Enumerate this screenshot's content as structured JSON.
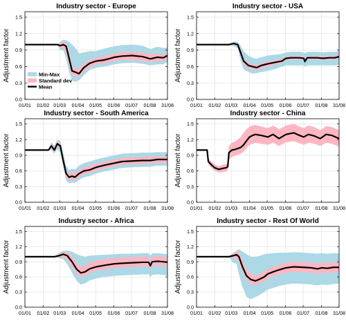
{
  "legend": {
    "items": [
      {
        "label": "Min-Max",
        "color": "#add8e6"
      },
      {
        "label": "Standard dev",
        "color": "#ffb6c1"
      },
      {
        "label": "Mean",
        "color": "#000000"
      }
    ]
  },
  "chart_data": [
    {
      "type": "area",
      "title": "Industry sector - Europe",
      "ylabel": "Adjustment factor",
      "xlabel": "",
      "x_ticks": [
        "01/01",
        "01/02",
        "01/03",
        "01/04",
        "01/05",
        "01/06",
        "01/07",
        "01/08",
        "31/08"
      ],
      "y_ticks": [
        0.0,
        0.3,
        0.6,
        0.9,
        1.2,
        1.5
      ],
      "ylim": [
        0,
        1.6
      ],
      "xlim_days": [
        0,
        242
      ],
      "legend_position": "lower-left",
      "grid": true,
      "x": [
        0,
        55,
        60,
        65,
        70,
        75,
        80,
        85,
        92,
        100,
        110,
        121,
        135,
        152,
        165,
        182,
        200,
        213,
        225,
        235,
        242
      ],
      "mean": [
        1.0,
        1.0,
        0.98,
        1.0,
        0.97,
        0.75,
        0.52,
        0.5,
        0.47,
        0.58,
        0.66,
        0.7,
        0.72,
        0.77,
        0.79,
        0.8,
        0.78,
        0.74,
        0.77,
        0.76,
        0.8
      ],
      "std_low": [
        1.0,
        1.0,
        0.94,
        0.95,
        0.85,
        0.64,
        0.45,
        0.42,
        0.42,
        0.52,
        0.6,
        0.64,
        0.66,
        0.7,
        0.72,
        0.72,
        0.7,
        0.68,
        0.7,
        0.7,
        0.73
      ],
      "std_high": [
        1.0,
        1.0,
        1.02,
        1.05,
        1.03,
        0.86,
        0.6,
        0.58,
        0.56,
        0.65,
        0.72,
        0.76,
        0.79,
        0.84,
        0.86,
        0.87,
        0.85,
        0.82,
        0.84,
        0.82,
        0.86
      ],
      "min": [
        1.0,
        1.0,
        0.9,
        0.9,
        0.75,
        0.5,
        0.35,
        0.32,
        0.35,
        0.44,
        0.54,
        0.58,
        0.6,
        0.64,
        0.66,
        0.67,
        0.65,
        0.62,
        0.64,
        0.64,
        0.68
      ],
      "max": [
        1.0,
        1.0,
        1.05,
        1.09,
        1.08,
        1.05,
        1.0,
        0.95,
        0.84,
        0.86,
        0.88,
        0.88,
        0.93,
        0.97,
        0.99,
        1.0,
        0.98,
        0.92,
        0.96,
        0.94,
        0.95
      ]
    },
    {
      "type": "area",
      "title": "Industry sector - USA",
      "ylabel": "Adjustment factor",
      "xlabel": "",
      "x_ticks": [
        "01/01",
        "01/02",
        "01/03",
        "01/04",
        "01/05",
        "01/06",
        "01/07",
        "01/08",
        "31/08"
      ],
      "y_ticks": [
        0.0,
        0.3,
        0.6,
        0.9,
        1.2,
        1.5
      ],
      "ylim": [
        0,
        1.6
      ],
      "xlim_days": [
        0,
        242
      ],
      "grid": true,
      "x": [
        0,
        55,
        63,
        70,
        75,
        80,
        88,
        95,
        102,
        110,
        121,
        135,
        145,
        152,
        160,
        175,
        182,
        184,
        188,
        195,
        205,
        215,
        225,
        235,
        242
      ],
      "mean": [
        1.0,
        1.0,
        1.02,
        1.0,
        0.85,
        0.7,
        0.62,
        0.6,
        0.58,
        0.62,
        0.65,
        0.68,
        0.7,
        0.75,
        0.76,
        0.76,
        0.75,
        0.69,
        0.76,
        0.76,
        0.76,
        0.75,
        0.76,
        0.76,
        0.78
      ],
      "std_low": [
        1.0,
        1.0,
        1.0,
        0.97,
        0.8,
        0.65,
        0.57,
        0.55,
        0.54,
        0.57,
        0.6,
        0.64,
        0.67,
        0.72,
        0.73,
        0.73,
        0.72,
        0.67,
        0.73,
        0.73,
        0.73,
        0.72,
        0.73,
        0.73,
        0.75
      ],
      "std_high": [
        1.0,
        1.0,
        1.04,
        1.03,
        0.9,
        0.75,
        0.67,
        0.64,
        0.62,
        0.66,
        0.69,
        0.72,
        0.73,
        0.78,
        0.79,
        0.79,
        0.78,
        0.72,
        0.79,
        0.79,
        0.79,
        0.78,
        0.79,
        0.79,
        0.81
      ],
      "min": [
        1.0,
        1.0,
        0.97,
        0.93,
        0.7,
        0.55,
        0.5,
        0.47,
        0.48,
        0.5,
        0.52,
        0.56,
        0.6,
        0.62,
        0.62,
        0.62,
        0.62,
        0.6,
        0.62,
        0.62,
        0.62,
        0.62,
        0.62,
        0.62,
        0.63
      ],
      "max": [
        1.0,
        1.0,
        1.06,
        1.05,
        0.98,
        0.88,
        0.8,
        0.76,
        0.74,
        0.77,
        0.8,
        0.82,
        0.83,
        0.86,
        0.87,
        0.87,
        0.86,
        0.84,
        0.87,
        0.87,
        0.87,
        0.86,
        0.87,
        0.87,
        0.88
      ]
    },
    {
      "type": "area",
      "title": "Industry sector - South America",
      "ylabel": "Adjustment factor",
      "xlabel": "",
      "x_ticks": [
        "01/01",
        "01/02",
        "01/03",
        "01/04",
        "01/05",
        "01/06",
        "01/07",
        "01/08",
        "31/08"
      ],
      "y_ticks": [
        0.0,
        0.3,
        0.6,
        0.9,
        1.2,
        1.5
      ],
      "ylim": [
        0,
        1.6
      ],
      "xlim_days": [
        0,
        242
      ],
      "grid": true,
      "x": [
        0,
        40,
        45,
        50,
        55,
        60,
        65,
        70,
        75,
        80,
        85,
        92,
        100,
        110,
        121,
        135,
        152,
        165,
        182,
        200,
        213,
        225,
        242
      ],
      "mean": [
        1.0,
        1.0,
        1.08,
        1.0,
        1.12,
        1.08,
        0.8,
        0.55,
        0.48,
        0.5,
        0.48,
        0.55,
        0.6,
        0.62,
        0.67,
        0.71,
        0.75,
        0.78,
        0.79,
        0.8,
        0.8,
        0.82,
        0.82
      ],
      "std_low": [
        1.0,
        1.0,
        1.04,
        0.96,
        1.07,
        1.02,
        0.73,
        0.48,
        0.42,
        0.44,
        0.42,
        0.49,
        0.54,
        0.56,
        0.61,
        0.65,
        0.69,
        0.72,
        0.73,
        0.74,
        0.74,
        0.76,
        0.76
      ],
      "std_high": [
        1.0,
        1.0,
        1.12,
        1.05,
        1.17,
        1.14,
        0.88,
        0.62,
        0.55,
        0.57,
        0.55,
        0.62,
        0.67,
        0.7,
        0.74,
        0.78,
        0.82,
        0.85,
        0.86,
        0.87,
        0.87,
        0.88,
        0.88
      ],
      "min": [
        1.0,
        1.0,
        1.0,
        0.93,
        1.02,
        0.95,
        0.68,
        0.42,
        0.36,
        0.38,
        0.37,
        0.43,
        0.48,
        0.5,
        0.55,
        0.59,
        0.63,
        0.66,
        0.67,
        0.68,
        0.68,
        0.7,
        0.7
      ],
      "max": [
        1.0,
        1.0,
        1.15,
        1.08,
        1.2,
        1.18,
        0.95,
        0.7,
        0.62,
        0.64,
        0.63,
        0.7,
        0.75,
        0.78,
        0.82,
        0.86,
        0.9,
        0.93,
        0.94,
        0.95,
        0.95,
        0.96,
        0.96
      ]
    },
    {
      "type": "area",
      "title": "Industry sector - China",
      "ylabel": "Adjustment factor",
      "xlabel": "",
      "x_ticks": [
        "01/01",
        "01/02",
        "01/03",
        "01/04",
        "01/05",
        "01/06",
        "01/07",
        "01/08",
        "31/08"
      ],
      "y_ticks": [
        0.0,
        0.3,
        0.6,
        0.9,
        1.2,
        1.5
      ],
      "ylim": [
        0,
        1.6
      ],
      "xlim_days": [
        0,
        242
      ],
      "grid": true,
      "x": [
        0,
        18,
        20,
        25,
        31,
        38,
        45,
        50,
        53,
        55,
        60,
        65,
        70,
        75,
        80,
        85,
        90,
        95,
        100,
        110,
        121,
        130,
        140,
        152,
        165,
        175,
        182,
        190,
        200,
        210,
        220,
        230,
        242
      ],
      "mean": [
        1.0,
        1.0,
        0.78,
        0.72,
        0.66,
        0.63,
        0.65,
        0.66,
        0.68,
        0.95,
        1.0,
        1.01,
        1.03,
        1.05,
        1.1,
        1.18,
        1.25,
        1.28,
        1.3,
        1.28,
        1.25,
        1.3,
        1.22,
        1.3,
        1.33,
        1.28,
        1.25,
        1.3,
        1.27,
        1.22,
        1.3,
        1.28,
        1.22
      ],
      "std_low": [
        1.0,
        1.0,
        0.73,
        0.66,
        0.6,
        0.57,
        0.58,
        0.59,
        0.62,
        0.82,
        0.87,
        0.89,
        0.91,
        0.93,
        0.97,
        1.04,
        1.1,
        1.12,
        1.14,
        1.12,
        1.1,
        1.14,
        1.08,
        1.15,
        1.17,
        1.13,
        1.1,
        1.14,
        1.12,
        1.08,
        1.14,
        1.12,
        1.07
      ],
      "std_high": [
        1.0,
        1.0,
        0.84,
        0.78,
        0.72,
        0.69,
        0.72,
        0.73,
        0.76,
        1.08,
        1.14,
        1.16,
        1.2,
        1.25,
        1.33,
        1.4,
        1.45,
        1.47,
        1.48,
        1.45,
        1.42,
        1.47,
        1.4,
        1.47,
        1.5,
        1.45,
        1.42,
        1.47,
        1.44,
        1.38,
        1.46,
        1.44,
        1.38
      ],
      "min": [
        1.0,
        1.0,
        0.73,
        0.66,
        0.6,
        0.57,
        0.58,
        0.59,
        0.62,
        0.82,
        0.87,
        0.89,
        0.91,
        0.93,
        0.97,
        1.04,
        1.1,
        1.12,
        1.14,
        1.12,
        1.1,
        1.14,
        1.08,
        1.15,
        1.17,
        1.13,
        1.1,
        1.14,
        1.12,
        1.08,
        1.14,
        1.12,
        1.07
      ],
      "max": [
        1.0,
        1.0,
        0.84,
        0.78,
        0.72,
        0.69,
        0.72,
        0.73,
        0.76,
        1.08,
        1.14,
        1.16,
        1.2,
        1.25,
        1.33,
        1.4,
        1.45,
        1.47,
        1.48,
        1.45,
        1.42,
        1.47,
        1.4,
        1.47,
        1.5,
        1.45,
        1.42,
        1.47,
        1.44,
        1.38,
        1.46,
        1.44,
        1.38
      ]
    },
    {
      "type": "area",
      "title": "Industry sector - Africa",
      "ylabel": "Adjustment factor",
      "xlabel": "",
      "x_ticks": [
        "01/01",
        "01/02",
        "01/03",
        "01/04",
        "01/05",
        "01/06",
        "01/07",
        "01/08",
        "31/08"
      ],
      "y_ticks": [
        0.0,
        0.3,
        0.6,
        0.9,
        1.2,
        1.5
      ],
      "ylim": [
        0,
        1.6
      ],
      "xlim_days": [
        0,
        242
      ],
      "grid": true,
      "x": [
        0,
        50,
        58,
        65,
        72,
        80,
        88,
        95,
        102,
        110,
        121,
        135,
        152,
        165,
        182,
        200,
        210,
        213,
        216,
        225,
        235,
        242
      ],
      "mean": [
        1.0,
        1.0,
        1.02,
        1.05,
        1.02,
        0.9,
        0.75,
        0.68,
        0.7,
        0.76,
        0.8,
        0.83,
        0.86,
        0.87,
        0.88,
        0.89,
        0.89,
        0.82,
        0.9,
        0.91,
        0.9,
        0.89
      ],
      "std_low": [
        1.0,
        1.0,
        0.99,
        1.0,
        0.94,
        0.8,
        0.66,
        0.6,
        0.62,
        0.68,
        0.72,
        0.75,
        0.78,
        0.79,
        0.8,
        0.81,
        0.81,
        0.75,
        0.82,
        0.83,
        0.82,
        0.81
      ],
      "std_high": [
        1.0,
        1.0,
        1.05,
        1.1,
        1.08,
        1.0,
        0.86,
        0.8,
        0.82,
        0.88,
        0.92,
        0.95,
        0.97,
        0.98,
        0.99,
        1.0,
        1.0,
        0.93,
        1.0,
        1.01,
        1.0,
        0.99
      ],
      "min": [
        1.0,
        1.0,
        0.97,
        0.95,
        0.85,
        0.68,
        0.52,
        0.45,
        0.47,
        0.53,
        0.57,
        0.6,
        0.62,
        0.63,
        0.64,
        0.65,
        0.65,
        0.6,
        0.64,
        0.65,
        0.64,
        0.62
      ],
      "max": [
        1.0,
        1.0,
        1.08,
        1.12,
        1.12,
        1.1,
        1.05,
        1.02,
        1.0,
        1.02,
        1.03,
        1.04,
        1.05,
        1.06,
        1.06,
        1.07,
        1.07,
        1.02,
        1.07,
        1.07,
        1.06,
        1.05
      ]
    },
    {
      "type": "area",
      "title": "Industry sector - Rest Of World",
      "ylabel": "Adjustment factor",
      "xlabel": "",
      "x_ticks": [
        "01/01",
        "01/02",
        "01/03",
        "01/04",
        "01/05",
        "01/06",
        "01/07",
        "01/08",
        "31/08"
      ],
      "y_ticks": [
        0.0,
        0.3,
        0.6,
        0.9,
        1.2,
        1.5
      ],
      "ylim": [
        0,
        1.6
      ],
      "xlim_days": [
        0,
        242
      ],
      "grid": true,
      "x": [
        0,
        55,
        62,
        68,
        72,
        78,
        85,
        92,
        100,
        108,
        115,
        121,
        130,
        140,
        152,
        165,
        182,
        195,
        205,
        213,
        222,
        232,
        242
      ],
      "mean": [
        1.0,
        1.0,
        1.02,
        1.04,
        1.0,
        0.8,
        0.62,
        0.55,
        0.52,
        0.56,
        0.6,
        0.66,
        0.7,
        0.74,
        0.78,
        0.8,
        0.79,
        0.78,
        0.76,
        0.78,
        0.77,
        0.79,
        0.79
      ],
      "std_low": [
        1.0,
        1.0,
        0.98,
        0.97,
        0.9,
        0.7,
        0.53,
        0.46,
        0.44,
        0.47,
        0.51,
        0.57,
        0.61,
        0.65,
        0.68,
        0.7,
        0.69,
        0.68,
        0.66,
        0.68,
        0.67,
        0.69,
        0.69
      ],
      "std_high": [
        1.0,
        1.0,
        1.06,
        1.1,
        1.08,
        0.92,
        0.74,
        0.66,
        0.62,
        0.66,
        0.7,
        0.76,
        0.8,
        0.84,
        0.88,
        0.9,
        0.89,
        0.88,
        0.86,
        0.88,
        0.87,
        0.89,
        0.89
      ],
      "min": [
        1.0,
        1.0,
        0.88,
        0.86,
        0.65,
        0.4,
        0.2,
        0.16,
        0.2,
        0.25,
        0.3,
        0.35,
        0.38,
        0.42,
        0.45,
        0.47,
        0.46,
        0.45,
        0.43,
        0.45,
        0.44,
        0.46,
        0.47
      ],
      "max": [
        1.0,
        1.0,
        1.08,
        1.12,
        1.15,
        1.1,
        1.05,
        1.0,
        1.0,
        1.02,
        1.05,
        1.06,
        1.07,
        1.08,
        1.08,
        1.09,
        1.08,
        1.07,
        1.06,
        1.07,
        1.06,
        1.07,
        1.07
      ]
    }
  ]
}
